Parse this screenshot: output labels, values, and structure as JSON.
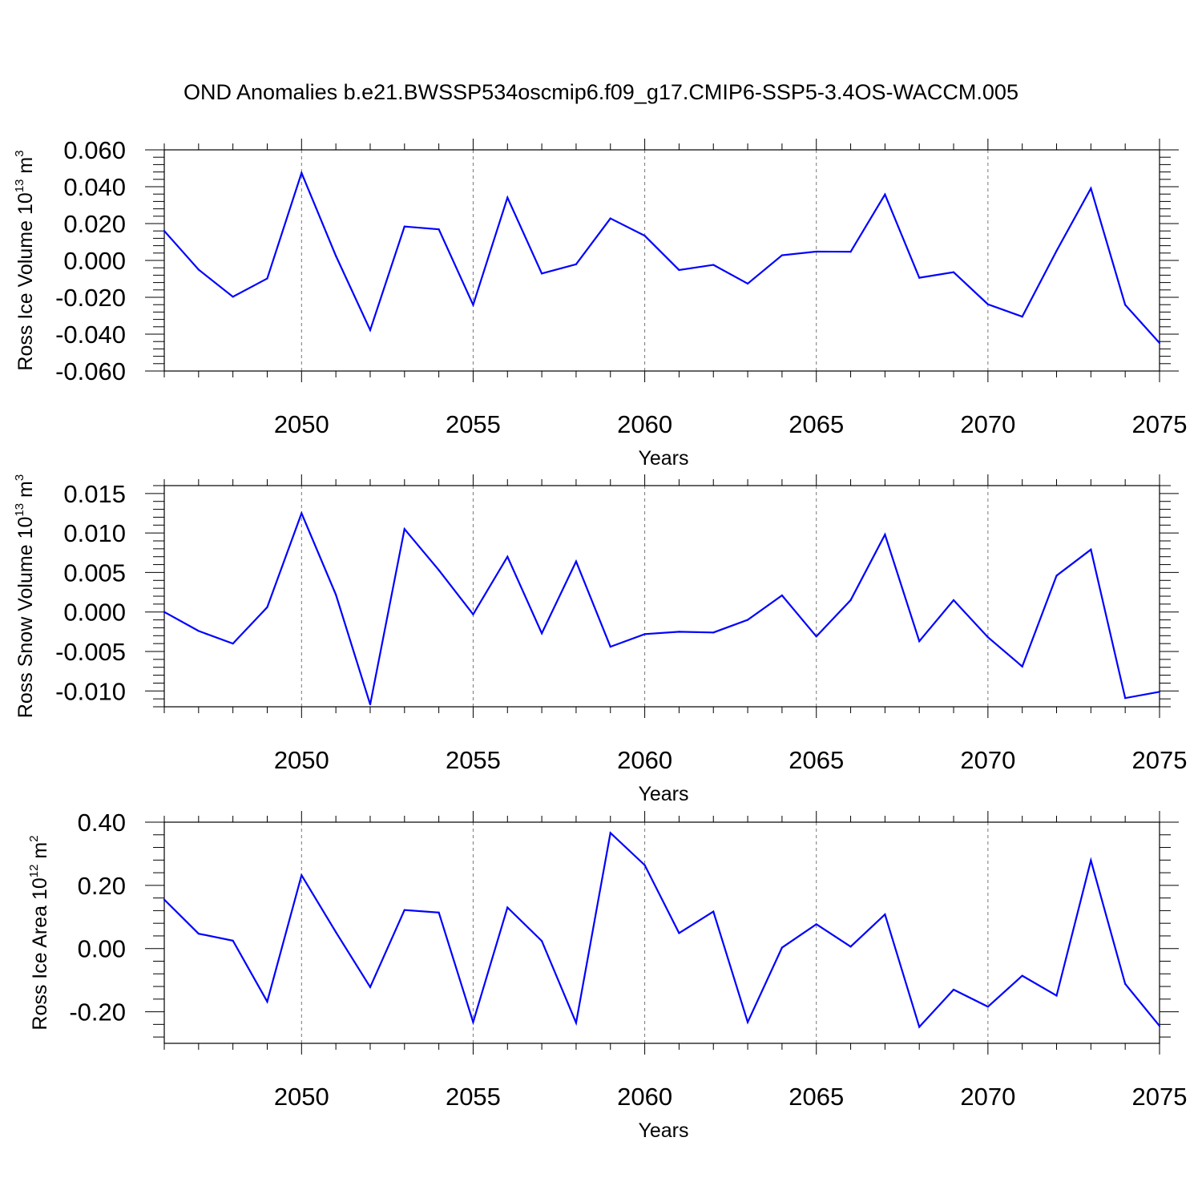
{
  "title": "OND Anomalies b.e21.BWSSP534oscmip6.f09_g17.CMIP6-SSP5-3.4OS-WACCM.005",
  "chart_data": [
    {
      "type": "line",
      "ylabel": "Ross Ice Volume",
      "ylabel_unit_base": "10",
      "ylabel_unit_exp": "13",
      "ylabel_unit_symbol": "m",
      "ylabel_unit_symbol_exp": "3",
      "xlabel": "Years",
      "xlim": [
        2046,
        2075
      ],
      "ylim": [
        -0.06,
        0.06
      ],
      "x_ticks": [
        2050,
        2055,
        2060,
        2065,
        2070,
        2075
      ],
      "x_tick_labels": [
        "2050",
        "2055",
        "2060",
        "2065",
        "2070",
        "2075"
      ],
      "y_ticks": [
        0.06,
        0.04,
        0.02,
        0.0,
        -0.02,
        -0.04,
        -0.06
      ],
      "y_tick_labels": [
        "0.060",
        "0.040",
        "0.020",
        "0.000",
        "-0.020",
        "-0.040",
        "-0.060"
      ],
      "grid": "dashed vertical lines at major x ticks",
      "line_color": "#0000ff",
      "x": [
        2046,
        2047,
        2048,
        2049,
        2050,
        2051,
        2052,
        2053,
        2054,
        2055,
        2056,
        2057,
        2058,
        2059,
        2060,
        2061,
        2062,
        2063,
        2064,
        2065,
        2066,
        2067,
        2068,
        2069,
        2070,
        2071,
        2072,
        2073,
        2074,
        2075
      ],
      "values": [
        0.016,
        -0.005,
        -0.0197,
        -0.0098,
        0.0475,
        0.0025,
        -0.0378,
        0.0184,
        0.0169,
        -0.0241,
        0.0341,
        -0.0071,
        -0.0021,
        0.0228,
        0.0134,
        -0.0052,
        -0.0024,
        -0.0126,
        0.0028,
        0.0048,
        0.0047,
        0.0358,
        -0.0094,
        -0.0064,
        -0.0238,
        -0.0305,
        0.0052,
        0.0391,
        -0.0241,
        -0.0448
      ]
    },
    {
      "type": "line",
      "ylabel": "Ross Snow Volume",
      "ylabel_unit_base": "10",
      "ylabel_unit_exp": "13",
      "ylabel_unit_symbol": "m",
      "ylabel_unit_symbol_exp": "3",
      "xlabel": "Years",
      "xlim": [
        2046,
        2075
      ],
      "ylim": [
        -0.012,
        0.016
      ],
      "x_ticks": [
        2050,
        2055,
        2060,
        2065,
        2070,
        2075
      ],
      "x_tick_labels": [
        "2050",
        "2055",
        "2060",
        "2065",
        "2070",
        "2075"
      ],
      "y_ticks": [
        0.015,
        0.01,
        0.005,
        0.0,
        -0.005,
        -0.01
      ],
      "y_tick_labels": [
        "0.015",
        "0.010",
        "0.005",
        "0.000",
        "-0.005",
        "-0.010"
      ],
      "grid": "dashed vertical lines at major x ticks",
      "line_color": "#0000ff",
      "x": [
        2046,
        2047,
        2048,
        2049,
        2050,
        2051,
        2052,
        2053,
        2054,
        2055,
        2056,
        2057,
        2058,
        2059,
        2060,
        2061,
        2062,
        2063,
        2064,
        2065,
        2066,
        2067,
        2068,
        2069,
        2070,
        2071,
        2072,
        2073,
        2074,
        2075
      ],
      "values": [
        0.0,
        -0.0024,
        -0.004,
        0.0006,
        0.0125,
        0.0022,
        -0.0117,
        0.0105,
        0.0053,
        -0.0003,
        0.007,
        -0.0027,
        0.0064,
        -0.0044,
        -0.0028,
        -0.0025,
        -0.0026,
        -0.001,
        0.0021,
        -0.0031,
        0.0015,
        0.0098,
        -0.0037,
        0.0015,
        -0.0032,
        -0.0069,
        0.0046,
        0.0079,
        -0.0109,
        -0.0101
      ]
    },
    {
      "type": "line",
      "ylabel": "Ross Ice Area",
      "ylabel_unit_base": "10",
      "ylabel_unit_exp": "12",
      "ylabel_unit_symbol": "m",
      "ylabel_unit_symbol_exp": "2",
      "xlabel": "Years",
      "xlim": [
        2046,
        2075
      ],
      "ylim": [
        -0.3,
        0.4
      ],
      "x_ticks": [
        2050,
        2055,
        2060,
        2065,
        2070,
        2075
      ],
      "x_tick_labels": [
        "2050",
        "2055",
        "2060",
        "2065",
        "2070",
        "2075"
      ],
      "y_ticks": [
        0.4,
        0.2,
        0.0,
        -0.2
      ],
      "y_tick_labels": [
        "0.40",
        "0.20",
        "0.00",
        "-0.20"
      ],
      "grid": "dashed vertical lines at major x ticks",
      "line_color": "#0000ff",
      "x": [
        2046,
        2047,
        2048,
        2049,
        2050,
        2051,
        2052,
        2053,
        2054,
        2055,
        2056,
        2057,
        2058,
        2059,
        2060,
        2061,
        2062,
        2063,
        2064,
        2065,
        2066,
        2067,
        2068,
        2069,
        2070,
        2071,
        2072,
        2073,
        2074,
        2075
      ],
      "values": [
        0.155,
        0.047,
        0.025,
        -0.168,
        0.232,
        0.052,
        -0.122,
        0.122,
        0.114,
        -0.233,
        0.13,
        0.024,
        -0.235,
        0.366,
        0.264,
        0.049,
        0.117,
        -0.233,
        0.003,
        0.077,
        0.006,
        0.108,
        -0.248,
        -0.13,
        -0.184,
        -0.086,
        -0.149,
        0.279,
        -0.112,
        -0.245
      ]
    }
  ]
}
